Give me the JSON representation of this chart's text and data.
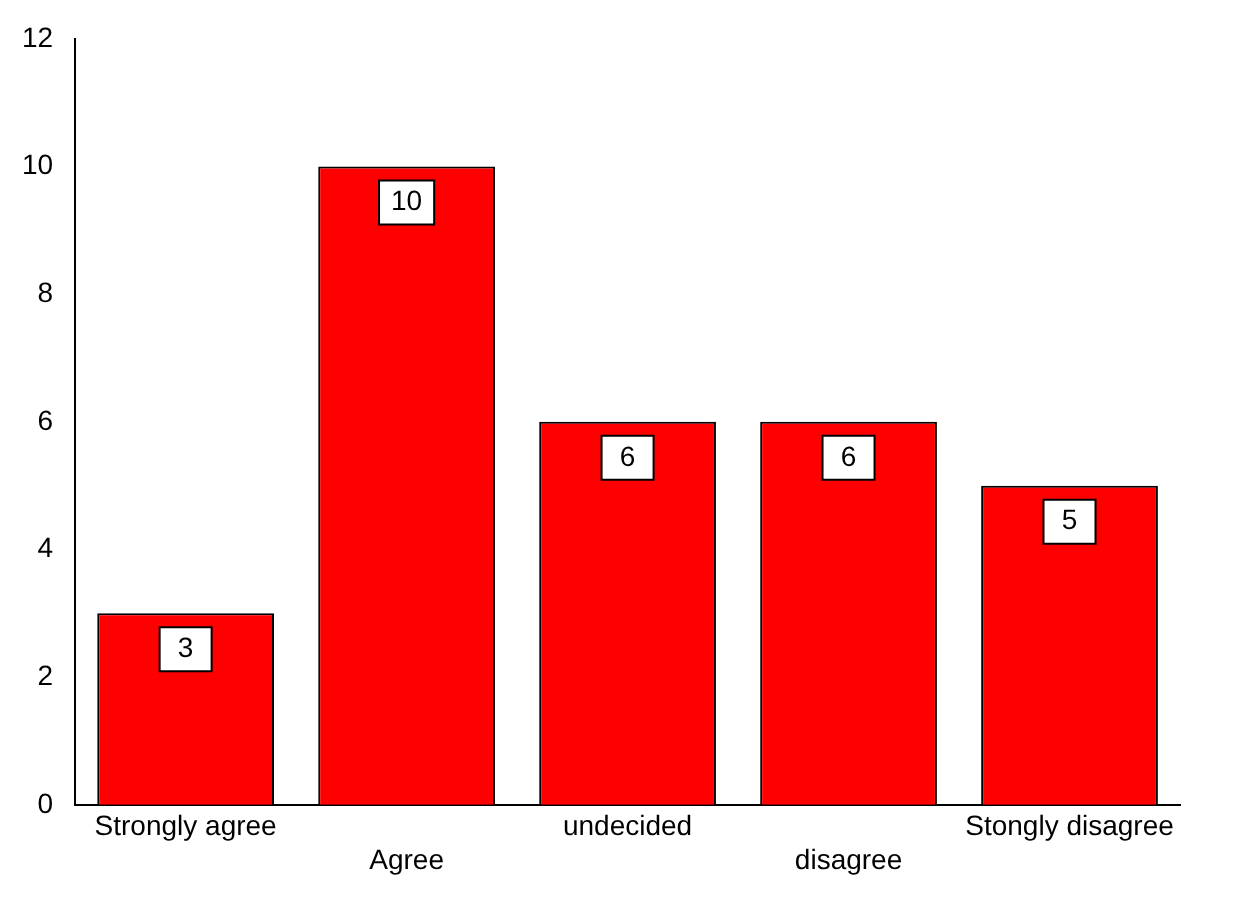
{
  "chart_data": {
    "type": "bar",
    "categories": [
      "Strongly agree",
      "Agree",
      "undecided",
      "disagree",
      "Stongly disagree"
    ],
    "values": [
      3,
      10,
      6,
      6,
      5
    ],
    "color": "#ff0000",
    "ylim": [
      0,
      12
    ],
    "yticks": [
      0,
      2,
      4,
      6,
      8,
      10,
      12
    ],
    "grid": false,
    "legend": false,
    "data_labels": true
  }
}
